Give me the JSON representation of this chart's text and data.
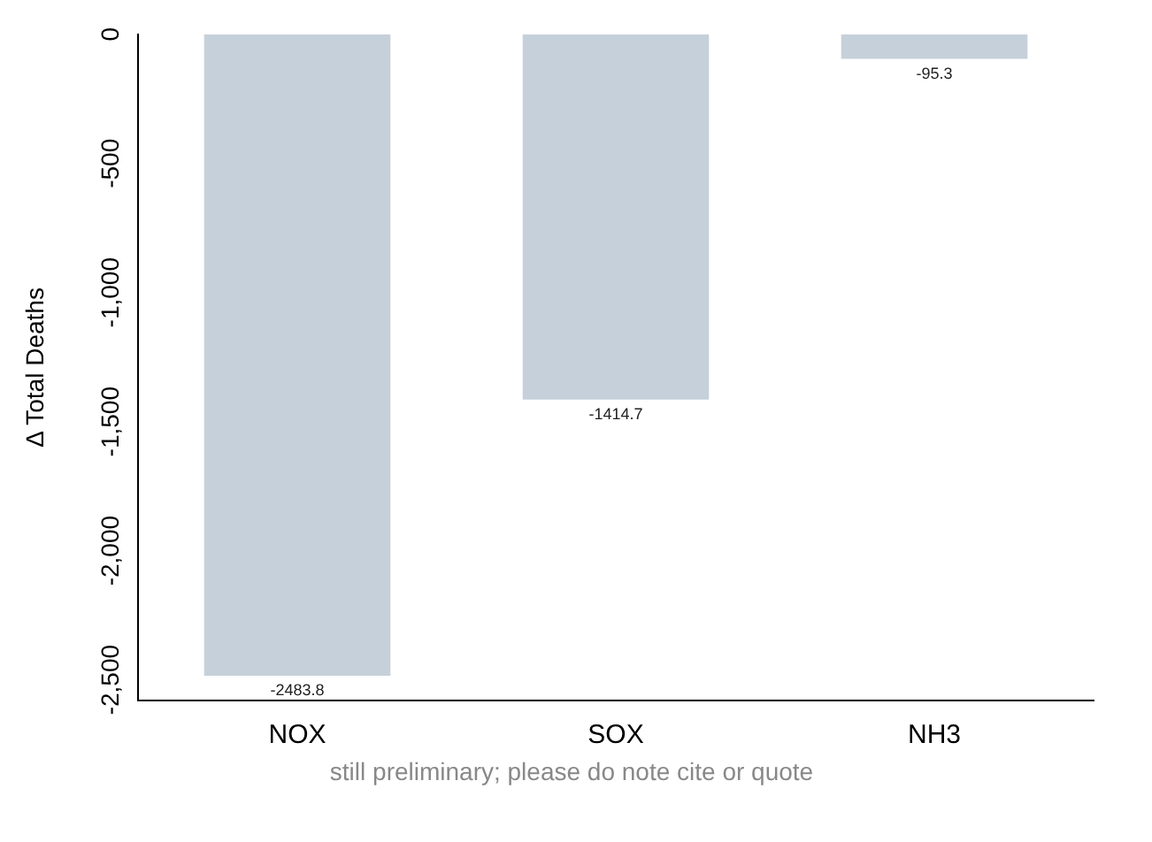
{
  "chart_data": {
    "type": "bar",
    "ylabel": "Δ Total Deaths",
    "categories": [
      "NOX",
      "SOX",
      "NH3"
    ],
    "values": [
      -2483.8,
      -1414.7,
      -95.3
    ],
    "color": "#c6d0da",
    "data_labels": true,
    "ylim": [
      -2580,
      0
    ],
    "yticks": [
      {
        "value": 0,
        "label": "0"
      },
      {
        "value": -500,
        "label": "-500"
      },
      {
        "value": -1000,
        "label": "-1,000"
      },
      {
        "value": -1500,
        "label": "-1,500"
      },
      {
        "value": -2000,
        "label": "-2,000"
      },
      {
        "value": -2500,
        "label": "-2,500"
      }
    ],
    "grid": false,
    "legend": false,
    "annotations": [
      "still preliminary; please do note cite or quote"
    ]
  }
}
